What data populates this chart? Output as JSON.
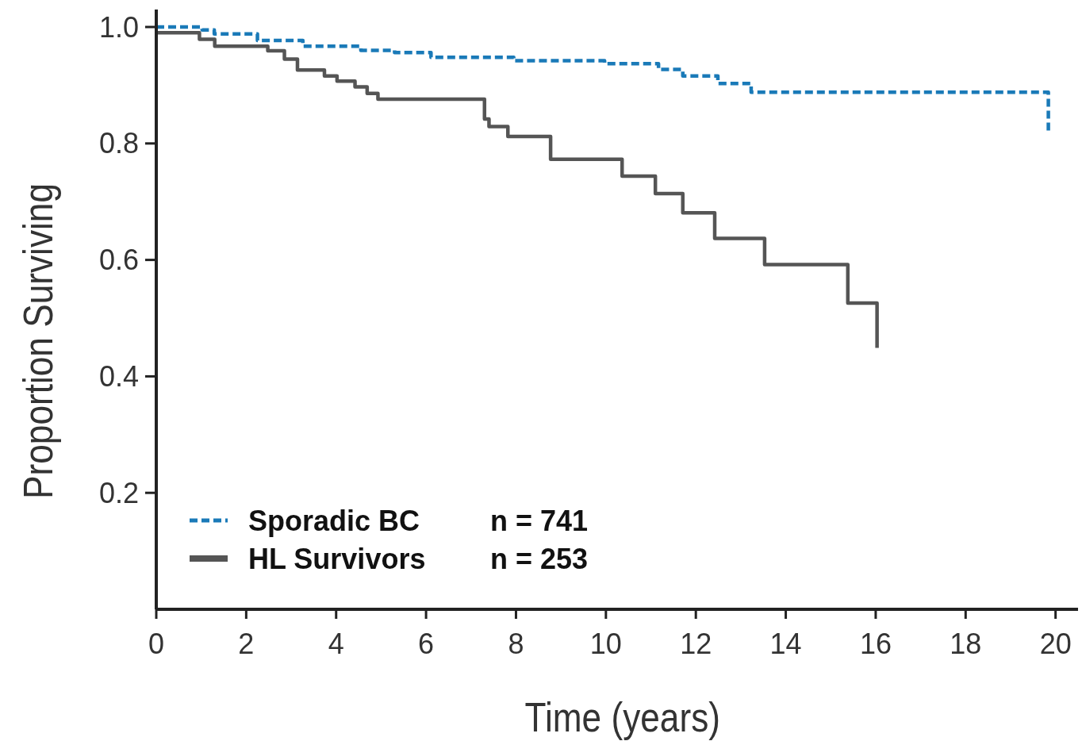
{
  "chart_data": {
    "type": "step",
    "xlabel": "Time (years)",
    "ylabel": "Proportion Surviving",
    "xlim": [
      0,
      20.5
    ],
    "ylim": [
      0,
      1.03
    ],
    "xticks": [
      0,
      2,
      4,
      6,
      8,
      10,
      12,
      14,
      16,
      18,
      20
    ],
    "yticks": [
      0.2,
      0.4,
      0.6,
      {
        "value": 0.8,
        "label": "0.8"
      },
      {
        "value": 1,
        "label": "1.0"
      }
    ],
    "grid": false,
    "legend": "bottom left",
    "marker": "none",
    "annotations": [
      "n = 741",
      "n = 253"
    ],
    "series": [
      {
        "name": "Sporadic BC",
        "color": "#1a7ab8",
        "line_style": "dashed",
        "x": [
          0,
          1.02,
          1.29,
          2.25,
          3.26,
          4.55,
          5.3,
          6.11,
          7.95,
          9.97,
          11.17,
          11.71,
          12.49,
          13.23,
          19.84,
          19.84
        ],
        "values": [
          1.0,
          0.995,
          0.988,
          0.977,
          0.967,
          0.96,
          0.956,
          0.948,
          0.942,
          0.937,
          0.927,
          0.916,
          0.903,
          0.888,
          0.888,
          0.819
        ]
      },
      {
        "name": "HL Survivors",
        "color": "#555555",
        "line_style": "solid",
        "x": [
          0,
          0.96,
          1.3,
          2.48,
          2.85,
          3.14,
          3.74,
          4.02,
          4.42,
          4.69,
          4.93,
          7.3,
          7.4,
          7.82,
          8.77,
          10.36,
          11.1,
          11.71,
          12.42,
          13.53,
          15.38,
          16.03,
          16.03
        ],
        "values": [
          0.99,
          0.979,
          0.967,
          0.959,
          0.945,
          0.926,
          0.916,
          0.907,
          0.897,
          0.886,
          0.876,
          0.842,
          0.829,
          0.812,
          0.773,
          0.744,
          0.714,
          0.681,
          0.637,
          0.592,
          0.526,
          0.526,
          0.449
        ]
      }
    ]
  }
}
